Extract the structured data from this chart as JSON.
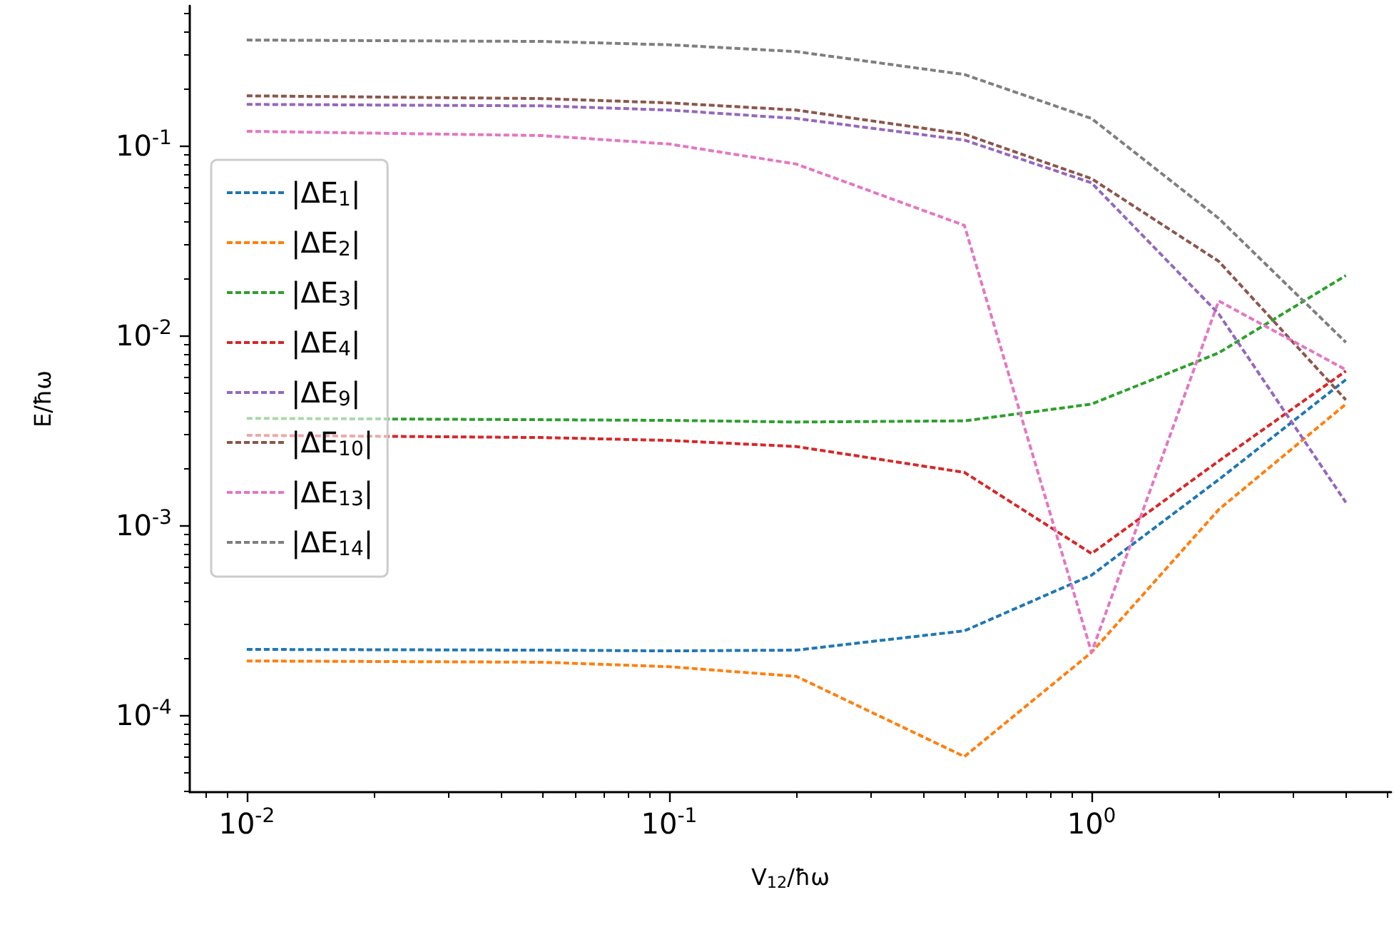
{
  "chart_data": {
    "type": "line",
    "xlabel": "V$_{12}$/ħω",
    "ylabel": "E/ħω",
    "x": [
      0.01,
      0.05,
      0.1,
      0.2,
      0.5,
      1,
      2,
      4
    ],
    "series": [
      {
        "name": "|ΔE$_{1}$|",
        "color": "#1f77b4",
        "values": [
          0.000222,
          0.00022,
          0.000218,
          0.00022,
          0.000278,
          0.000546,
          0.00174,
          0.00585
        ]
      },
      {
        "name": "|ΔE$_{2}$|",
        "color": "#ff7f0e",
        "values": [
          0.000193,
          0.00019,
          0.00018,
          0.00016,
          6.05e-05,
          0.000214,
          0.00121,
          0.00435
        ]
      },
      {
        "name": "|ΔE$_{3}$|",
        "color": "#2ca02c",
        "values": [
          0.00366,
          0.0036,
          0.00357,
          0.0035,
          0.00355,
          0.00435,
          0.0081,
          0.0207
        ]
      },
      {
        "name": "|ΔE$_{4}$|",
        "color": "#d62728",
        "values": [
          0.00298,
          0.0029,
          0.0028,
          0.0026,
          0.0019,
          0.00071,
          0.00218,
          0.0065
        ]
      },
      {
        "name": "|ΔE$_{9}$|",
        "color": "#9467bd",
        "values": [
          0.165,
          0.162,
          0.154,
          0.139,
          0.107,
          0.0637,
          0.013,
          0.00132
        ]
      },
      {
        "name": "|ΔE$_{10}$|",
        "color": "#8c564b",
        "values": [
          0.183,
          0.177,
          0.168,
          0.154,
          0.115,
          0.067,
          0.0246,
          0.00458
        ]
      },
      {
        "name": "|ΔE$_{13}$|",
        "color": "#e377c2",
        "values": [
          0.119,
          0.113,
          0.102,
          0.08,
          0.038,
          0.000214,
          0.0152,
          0.0066
        ]
      },
      {
        "name": "|ΔE$_{14}$|",
        "color": "#7f7f7f",
        "values": [
          0.36,
          0.354,
          0.34,
          0.313,
          0.237,
          0.139,
          0.0414,
          0.0092
        ]
      }
    ],
    "log": "xy",
    "xlim": [
      0.00733,
      5.12
    ],
    "ylim": [
      3.93e-05,
      0.546
    ],
    "xticks": [
      {
        "value": 0.01,
        "label": "10$^{-2}$"
      },
      {
        "value": 0.1,
        "label": "10$^{-1}$"
      },
      {
        "value": 1,
        "label": "10$^{0}$"
      }
    ],
    "yticks": [
      {
        "value": 0.0001,
        "label": "10$^{-4}$"
      },
      {
        "value": 0.001,
        "label": "10$^{-3}$"
      },
      {
        "value": 0.01,
        "label": "10$^{-2}$"
      },
      {
        "value": 0.1,
        "label": "10$^{-1}$"
      }
    ],
    "legend": "left",
    "grid": false,
    "marker": "none",
    "line_style": "dashed"
  }
}
